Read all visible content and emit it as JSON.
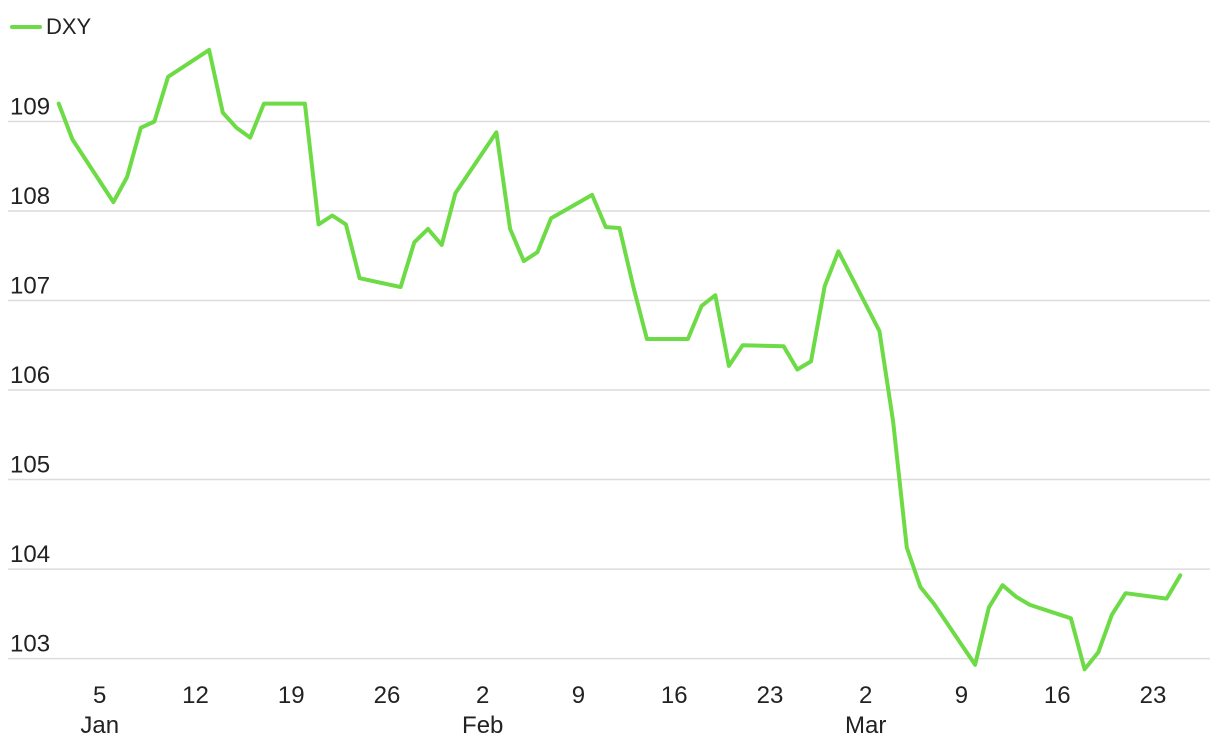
{
  "legend": {
    "label": "DXY",
    "color": "#6ddb45"
  },
  "chart_data": {
    "type": "line",
    "title": "",
    "xlabel": "",
    "ylabel": "",
    "grid": true,
    "legend_position": "top-left",
    "ylim": [
      102.85,
      110.0
    ],
    "xlim": [
      "2025-01-01",
      "2025-03-26"
    ],
    "y_ticks": [
      103,
      104,
      105,
      106,
      107,
      108,
      109
    ],
    "x_ticks": [
      {
        "label": "5",
        "sublabel": "Jan",
        "date": "2025-01-05"
      },
      {
        "label": "12",
        "sublabel": "",
        "date": "2025-01-12"
      },
      {
        "label": "19",
        "sublabel": "",
        "date": "2025-01-19"
      },
      {
        "label": "26",
        "sublabel": "",
        "date": "2025-01-26"
      },
      {
        "label": "2",
        "sublabel": "Feb",
        "date": "2025-02-02"
      },
      {
        "label": "9",
        "sublabel": "",
        "date": "2025-02-09"
      },
      {
        "label": "16",
        "sublabel": "",
        "date": "2025-02-16"
      },
      {
        "label": "23",
        "sublabel": "",
        "date": "2025-02-23"
      },
      {
        "label": "2",
        "sublabel": "Mar",
        "date": "2025-03-02"
      },
      {
        "label": "9",
        "sublabel": "",
        "date": "2025-03-09"
      },
      {
        "label": "16",
        "sublabel": "",
        "date": "2025-03-16"
      },
      {
        "label": "23",
        "sublabel": "",
        "date": "2025-03-23"
      }
    ],
    "series": [
      {
        "name": "DXY",
        "color": "#6ddb45",
        "x": [
          "2025-01-02",
          "2025-01-03",
          "2025-01-06",
          "2025-01-07",
          "2025-01-08",
          "2025-01-09",
          "2025-01-10",
          "2025-01-13",
          "2025-01-14",
          "2025-01-15",
          "2025-01-16",
          "2025-01-17",
          "2025-01-20",
          "2025-01-21",
          "2025-01-22",
          "2025-01-23",
          "2025-01-24",
          "2025-01-27",
          "2025-01-28",
          "2025-01-29",
          "2025-01-30",
          "2025-01-31",
          "2025-02-03",
          "2025-02-04",
          "2025-02-05",
          "2025-02-06",
          "2025-02-07",
          "2025-02-10",
          "2025-02-11",
          "2025-02-12",
          "2025-02-13",
          "2025-02-14",
          "2025-02-17",
          "2025-02-18",
          "2025-02-19",
          "2025-02-20",
          "2025-02-21",
          "2025-02-24",
          "2025-02-25",
          "2025-02-26",
          "2025-02-27",
          "2025-02-28",
          "2025-03-03",
          "2025-03-04",
          "2025-03-05",
          "2025-03-06",
          "2025-03-07",
          "2025-03-10",
          "2025-03-11",
          "2025-03-12",
          "2025-03-13",
          "2025-03-14",
          "2025-03-17",
          "2025-03-18",
          "2025-03-19",
          "2025-03-20",
          "2025-03-21",
          "2025-03-24",
          "2025-03-25"
        ],
        "values": [
          109.2,
          108.8,
          108.1,
          108.38,
          108.93,
          109.0,
          109.5,
          109.8,
          109.1,
          108.93,
          108.82,
          109.2,
          109.2,
          107.85,
          107.95,
          107.85,
          107.25,
          107.15,
          107.65,
          107.8,
          107.62,
          108.2,
          108.88,
          107.8,
          107.44,
          107.54,
          107.92,
          108.18,
          107.82,
          107.81,
          107.16,
          106.57,
          106.57,
          106.94,
          107.06,
          106.27,
          106.5,
          106.49,
          106.23,
          106.32,
          107.16,
          107.55,
          106.66,
          105.65,
          104.24,
          103.8,
          103.61,
          102.93,
          103.57,
          103.82,
          103.69,
          103.6,
          103.45,
          102.88,
          103.07,
          103.49,
          103.73,
          103.67,
          103.93
        ]
      }
    ]
  }
}
